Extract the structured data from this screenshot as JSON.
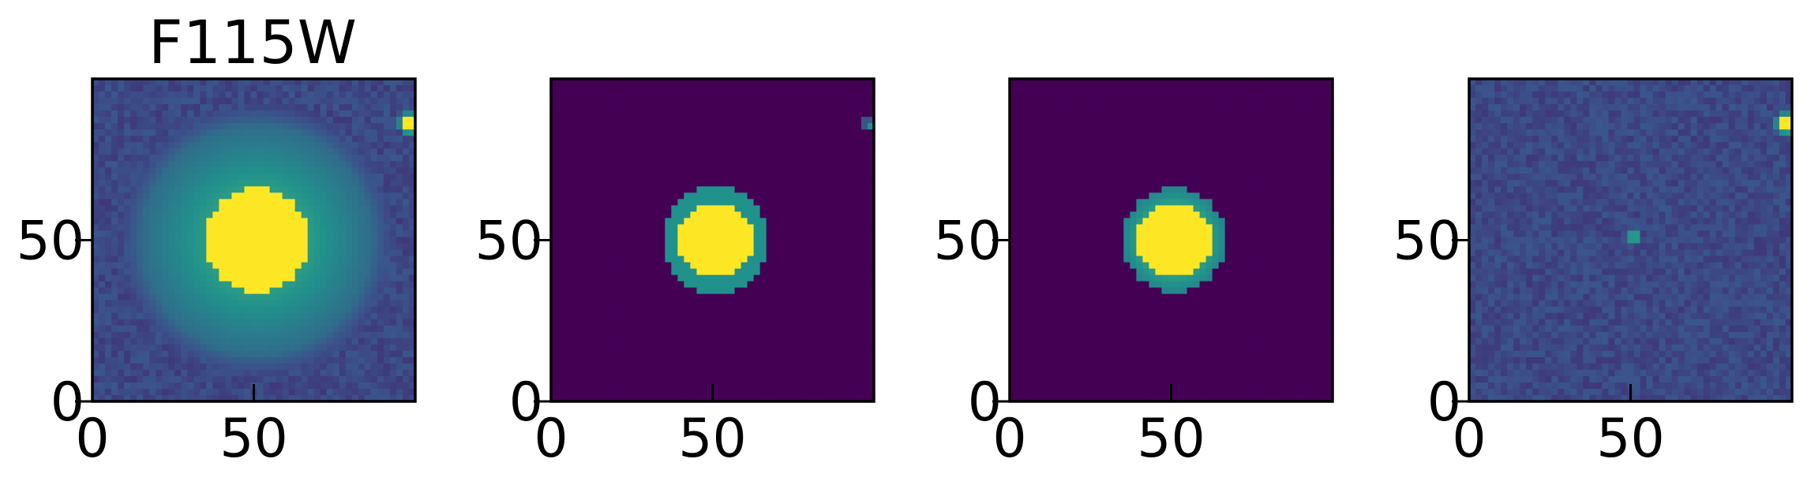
{
  "figure_title": "F115W",
  "colormap": [
    "#440154",
    "#3b528b",
    "#21918c",
    "#5ec962",
    "#fde725"
  ],
  "chart_data": [
    {
      "type": "heatmap",
      "panel": "data",
      "title": "F115W",
      "xlim": [
        0,
        100
      ],
      "ylim": [
        0,
        100
      ],
      "xticks": [
        0,
        50
      ],
      "yticks": [
        0,
        50
      ],
      "xtick_labels": [
        "0",
        "50"
      ],
      "ytick_labels": [
        "0",
        "50"
      ],
      "background_level": 0.22,
      "noise": 0.05,
      "sources": [
        {
          "x": 51,
          "y": 50,
          "core_radius": 16,
          "halo_radius": 36,
          "peak": 1.0,
          "halo_level": 0.35
        },
        {
          "x": 98.5,
          "y": 86,
          "core_radius": 2.5,
          "halo_radius": 4,
          "peak": 1.0,
          "halo_level": 0.4
        }
      ]
    },
    {
      "type": "heatmap",
      "panel": "model",
      "title": "",
      "xlim": [
        0,
        100
      ],
      "ylim": [
        0,
        100
      ],
      "xticks": [
        0,
        50
      ],
      "yticks": [
        0,
        50
      ],
      "xtick_labels": [
        "0",
        "50"
      ],
      "ytick_labels": [
        "0",
        "50"
      ],
      "background_level": 0.0,
      "noise": 0.0,
      "pixelated": true,
      "sources": [
        {
          "x": 51,
          "y": 50,
          "core_radius": 11.5,
          "halo_radius": 16.5,
          "peak": 1.0,
          "halo_level": 0.45
        },
        {
          "x": 99,
          "y": 86,
          "core_radius": 1.2,
          "halo_radius": 2.5,
          "peak": 0.5,
          "halo_level": 0.3
        }
      ]
    },
    {
      "type": "heatmap",
      "panel": "smooth model",
      "title": "",
      "xlim": [
        0,
        100
      ],
      "ylim": [
        0,
        100
      ],
      "xticks": [
        0,
        50
      ],
      "yticks": [
        0,
        50
      ],
      "xtick_labels": [
        "0",
        "50"
      ],
      "ytick_labels": [
        "0",
        "50"
      ],
      "background_level": 0.0,
      "noise": 0.0,
      "sources": [
        {
          "x": 51,
          "y": 50,
          "core_radius": 11.5,
          "halo_radius": 16,
          "peak": 1.0,
          "halo_level": 0.45
        }
      ]
    },
    {
      "type": "heatmap",
      "panel": "residual",
      "title": "",
      "xlim": [
        0,
        100
      ],
      "ylim": [
        0,
        100
      ],
      "xticks": [
        0,
        50
      ],
      "yticks": [
        0,
        50
      ],
      "xtick_labels": [
        "0",
        "50"
      ],
      "ytick_labels": [
        "0",
        "50"
      ],
      "background_level": 0.22,
      "noise": 0.05,
      "sources": [
        {
          "x": 51,
          "y": 51,
          "core_radius": 1.2,
          "halo_radius": 2.5,
          "peak": 1.0,
          "halo_level": 0.35
        },
        {
          "x": 98.5,
          "y": 86,
          "core_radius": 2.5,
          "halo_radius": 4,
          "peak": 1.0,
          "halo_level": 0.4
        }
      ]
    }
  ]
}
